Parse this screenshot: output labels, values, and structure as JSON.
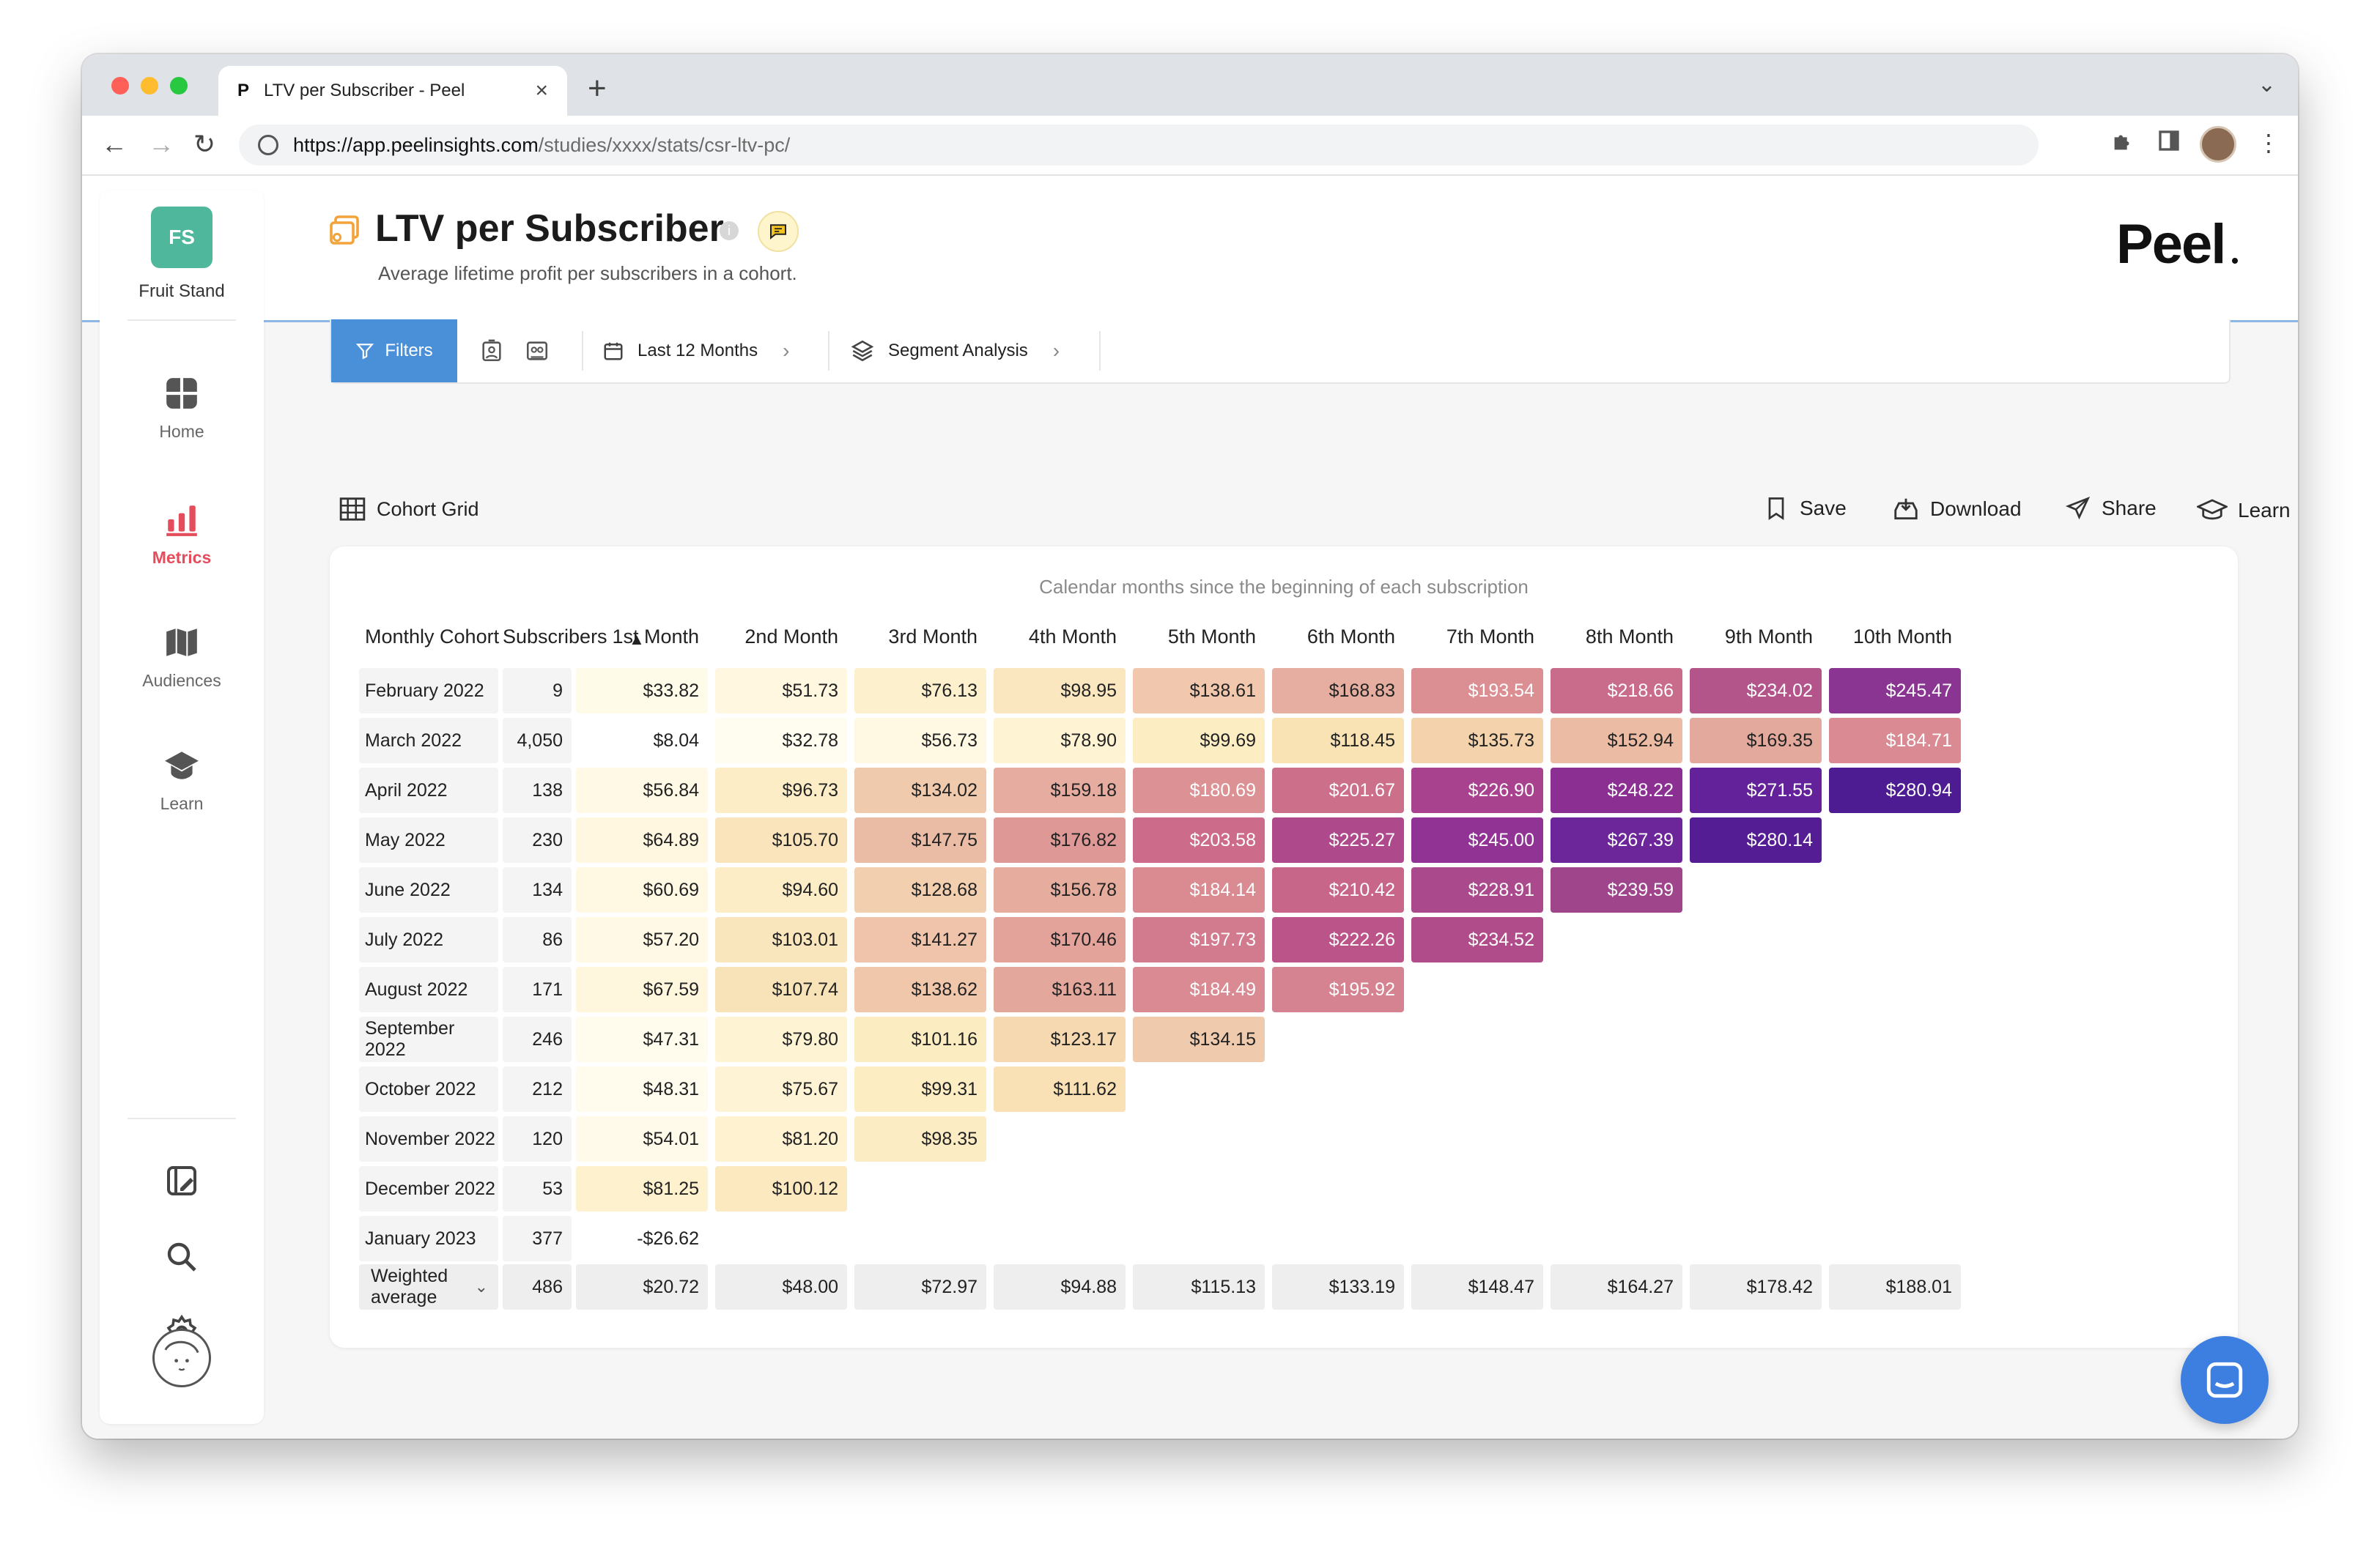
{
  "browser": {
    "tab_title": "LTV per Subscriber - Peel",
    "tab_favicon": "P",
    "url_host": "https://app.peelinsights.com",
    "url_path": "/studies/xxxx/stats/csr-ltv-pc/"
  },
  "sidebar": {
    "org_initials": "FS",
    "org_name": "Fruit Stand",
    "items": [
      {
        "label": "Home",
        "icon": "home-grid-icon"
      },
      {
        "label": "Metrics",
        "icon": "bar-chart-icon",
        "active": true
      },
      {
        "label": "Audiences",
        "icon": "map-icon"
      },
      {
        "label": "Learn",
        "icon": "graduation-cap-icon"
      }
    ],
    "utility_icons": [
      "edit-panel-icon",
      "search-icon",
      "gear-icon",
      "user-avatar"
    ]
  },
  "page": {
    "title": "LTV per Subscriber",
    "subtitle": "Average lifetime profit per subscribers in a cohort.",
    "brand": "Peel"
  },
  "filterbar": {
    "filters_label": "Filters",
    "date_range_label": "Last 12 Months",
    "segment_label": "Segment Analysis"
  },
  "section": {
    "title": "Cohort Grid",
    "actions": {
      "save": "Save",
      "download": "Download",
      "share": "Share",
      "learn": "Learn"
    }
  },
  "table": {
    "caption": "Calendar months since the beginning of each subscription",
    "headers": [
      "Monthly Cohort",
      "Subscribers",
      "1st Month",
      "2nd Month",
      "3rd Month",
      "4th Month",
      "5th Month",
      "6th Month",
      "7th Month",
      "8th Month",
      "9th Month",
      "10th Month"
    ],
    "rows": [
      {
        "cohort": "February 2022",
        "subs": "9",
        "values": [
          "$33.82",
          "$51.73",
          "$76.13",
          "$98.95",
          "$138.61",
          "$168.83",
          "$193.54",
          "$218.66",
          "$234.02",
          "$245.47"
        ],
        "colors": [
          "#fffbe9",
          "#fff7e0",
          "#fdf0cd",
          "#fbe7bf",
          "#f1c8ad",
          "#e6aea0",
          "#dc8f93",
          "#c96b8a",
          "#b3558b",
          "#8a3592"
        ]
      },
      {
        "cohort": "March 2022",
        "subs": "4,050",
        "values": [
          "$8.04",
          "$32.78",
          "$56.73",
          "$78.90",
          "$99.69",
          "$118.45",
          "$135.73",
          "$152.94",
          "$169.35",
          "$184.71"
        ],
        "colors": [
          "#ffffff",
          "#fffcf0",
          "#fff8e3",
          "#fef3d3",
          "#fcedc2",
          "#f9e3b4",
          "#f3d2ac",
          "#ebbba3",
          "#e3a99d",
          "#d98a92"
        ]
      },
      {
        "cohort": "April 2022",
        "subs": "138",
        "values": [
          "$56.84",
          "$96.73",
          "$134.02",
          "$159.18",
          "$180.69",
          "$201.67",
          "$226.90",
          "$248.22",
          "$271.55",
          "$280.94"
        ],
        "colors": [
          "#fff9e6",
          "#fcedc7",
          "#f0caad",
          "#e6ac9f",
          "#dc9294",
          "#cc6f8b",
          "#a8428f",
          "#8b2f93",
          "#63229a",
          "#4d1b92"
        ]
      },
      {
        "cohort": "May 2022",
        "subs": "230",
        "values": [
          "$64.89",
          "$105.70",
          "$147.75",
          "$176.82",
          "$203.58",
          "$225.27",
          "$245.00",
          "$267.39",
          "$280.14"
        ],
        "colors": [
          "#fff7e0",
          "#f9e4bb",
          "#ebbca5",
          "#de9896",
          "#cc6c8a",
          "#ae4a8b",
          "#913394",
          "#6c269a",
          "#551d94"
        ]
      },
      {
        "cohort": "June 2022",
        "subs": "134",
        "values": [
          "$60.69",
          "$94.60",
          "$128.68",
          "$156.78",
          "$184.14",
          "$210.42",
          "$228.91",
          "$239.59"
        ],
        "colors": [
          "#fff9e4",
          "#fcedc6",
          "#f2cfaf",
          "#e6ad9f",
          "#da8b92",
          "#c86689",
          "#aa4a8c",
          "#9e458c"
        ]
      },
      {
        "cohort": "July 2022",
        "subs": "86",
        "values": [
          "$57.20",
          "$103.01",
          "$141.27",
          "$170.46",
          "$197.73",
          "$222.26",
          "$234.52"
        ],
        "colors": [
          "#fff9e6",
          "#fae6bc",
          "#efc4aa",
          "#e3a39b",
          "#d27a8e",
          "#bb5489",
          "#b04c8a"
        ]
      },
      {
        "cohort": "August 2022",
        "subs": "171",
        "values": [
          "$67.59",
          "$107.74",
          "$138.62",
          "$163.11",
          "$184.49",
          "$195.92"
        ],
        "colors": [
          "#fff6de",
          "#f8e2b8",
          "#f0c7ab",
          "#e4a79c",
          "#d98a92",
          "#d58390"
        ]
      },
      {
        "cohort": "September 2022",
        "subs": "246",
        "values": [
          "$47.31",
          "$79.80",
          "$101.16",
          "$123.17",
          "$134.15"
        ],
        "colors": [
          "#fffcee",
          "#fef3d2",
          "#fcecc1",
          "#f6d9b0",
          "#f0caad"
        ]
      },
      {
        "cohort": "October 2022",
        "subs": "212",
        "values": [
          "$48.31",
          "$75.67",
          "$99.31",
          "$111.62"
        ],
        "colors": [
          "#fffcee",
          "#fef4d5",
          "#fcedc2",
          "#f9e0b5"
        ]
      },
      {
        "cohort": "November 2022",
        "subs": "120",
        "values": [
          "$54.01",
          "$81.20",
          "$98.35"
        ],
        "colors": [
          "#fffae9",
          "#fef2d0",
          "#fcecc3"
        ]
      },
      {
        "cohort": "December 2022",
        "subs": "53",
        "values": [
          "$81.25",
          "$100.12"
        ],
        "colors": [
          "#fef1cd",
          "#fce9bf"
        ]
      },
      {
        "cohort": "January 2023",
        "subs": "377",
        "values": [
          "-$26.62"
        ],
        "colors": [
          "#ffffff"
        ]
      }
    ],
    "average": {
      "label": "Weighted average",
      "subs": "486",
      "values": [
        "$20.72",
        "$48.00",
        "$72.97",
        "$94.88",
        "$115.13",
        "$133.19",
        "$148.47",
        "$164.27",
        "$178.42",
        "$188.01"
      ]
    }
  }
}
